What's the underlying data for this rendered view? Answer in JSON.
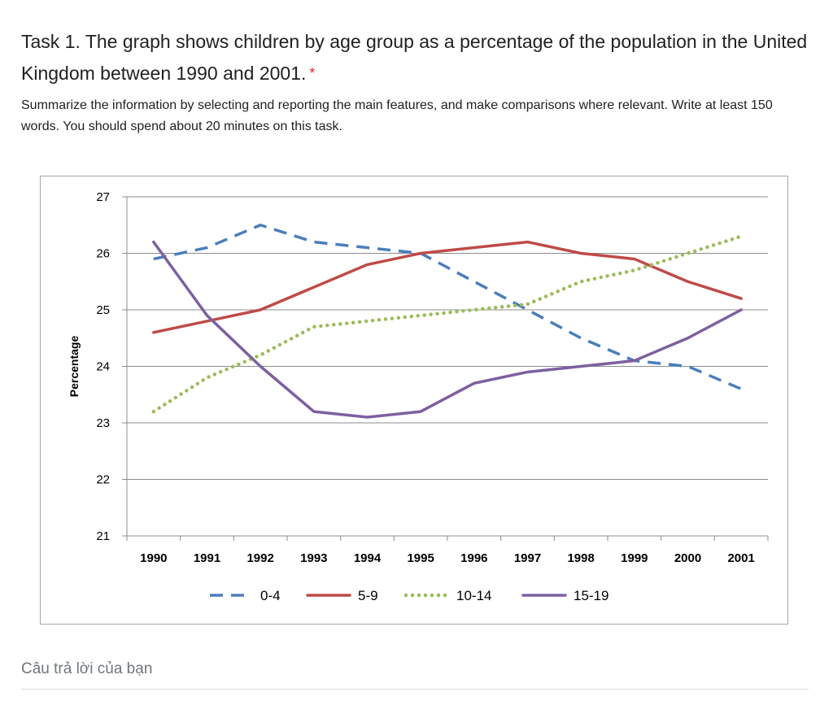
{
  "question": {
    "title": "Task 1. The graph shows children by age group as a percentage of the population in the United Kingdom between 1990 and 2001.",
    "required_marker": "*",
    "description": "Summarize the information by selecting and reporting the main features, and make comparisons where relevant. Write at least 150 words. You should spend about 20 minutes on this task."
  },
  "answer": {
    "placeholder": "Câu trả lời của bạn"
  },
  "colors": {
    "required": "#d93025",
    "grid": "#8c8c8c"
  },
  "chart_data": {
    "type": "line",
    "title": "",
    "xlabel": "",
    "ylabel": "Percentage",
    "ylim": [
      21,
      27
    ],
    "yticks": [
      "21",
      "22",
      "23",
      "24",
      "25",
      "26",
      "27"
    ],
    "grid": true,
    "legend_position": "bottom",
    "categories": [
      "1990",
      "1991",
      "1992",
      "1993",
      "1994",
      "1995",
      "1996",
      "1997",
      "1998",
      "1999",
      "2000",
      "2001"
    ],
    "series": [
      {
        "name": "0-4",
        "style": "dashed",
        "color": "#4a7ebb",
        "values": [
          25.9,
          26.1,
          26.5,
          26.2,
          26.1,
          26.0,
          25.5,
          25.0,
          24.5,
          24.1,
          24.0,
          23.6
        ]
      },
      {
        "name": "5-9",
        "style": "solid",
        "color": "#be4b48",
        "values": [
          24.6,
          24.8,
          25.0,
          25.4,
          25.8,
          26.0,
          26.1,
          26.2,
          26.0,
          25.9,
          25.5,
          25.2
        ]
      },
      {
        "name": "10-14",
        "style": "dotted",
        "color": "#9bbb59",
        "values": [
          23.2,
          23.8,
          24.2,
          24.7,
          24.8,
          24.9,
          25.0,
          25.1,
          25.5,
          25.7,
          26.0,
          26.3
        ]
      },
      {
        "name": "15-19",
        "style": "solid",
        "color": "#7d60a0",
        "values": [
          26.2,
          24.9,
          24.0,
          23.2,
          23.1,
          23.2,
          23.7,
          23.9,
          24.0,
          24.1,
          24.5,
          25.0
        ]
      }
    ]
  }
}
